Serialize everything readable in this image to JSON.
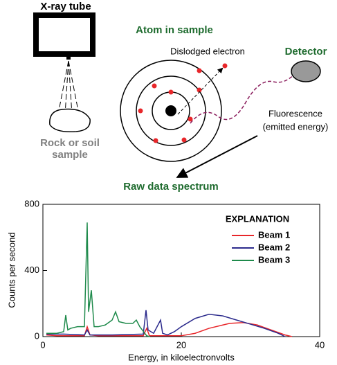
{
  "diagram": {
    "tube_label": "X-ray tube",
    "atom_label": "Atom in sample",
    "electron_label": "Dislodged electron",
    "detector_label": "Detector",
    "fluorescence_label": [
      "Fluorescence",
      "(emitted energy)"
    ],
    "sample_label": [
      "Rock or soil",
      "sample"
    ]
  },
  "chart_data": {
    "type": "line",
    "title": "Raw data spectrum",
    "x_label": "Energy, in kiloelectronvolts",
    "y_label": "Counts per second",
    "xlim": [
      0,
      40
    ],
    "ylim": [
      0,
      800
    ],
    "xticks": [
      0,
      20,
      40
    ],
    "yticks": [
      0,
      400,
      800
    ],
    "legend_title": "EXPLANATION",
    "legend": "upper right",
    "series": [
      {
        "name": "Beam 1",
        "color": "#e8262a",
        "x": [
          0.5,
          2,
          4,
          6,
          6.4,
          6.8,
          8,
          12,
          14.5,
          15,
          15.4,
          17,
          20,
          22,
          24,
          26,
          27,
          29,
          31,
          33,
          35,
          36
        ],
        "values": [
          10,
          5,
          5,
          5,
          60,
          10,
          5,
          5,
          5,
          50,
          5,
          5,
          5,
          20,
          50,
          70,
          80,
          85,
          70,
          40,
          10,
          0
        ]
      },
      {
        "name": "Beam 2",
        "color": "#2b2a8c",
        "x": [
          0.5,
          3,
          6,
          6.4,
          6.8,
          10,
          14.5,
          14.9,
          15.2,
          16,
          17,
          17.3,
          18,
          19,
          20,
          22,
          24,
          26,
          28,
          30,
          32,
          34,
          35
        ],
        "values": [
          15,
          15,
          10,
          40,
          10,
          10,
          15,
          160,
          40,
          20,
          100,
          20,
          10,
          30,
          60,
          110,
          135,
          125,
          100,
          75,
          50,
          20,
          0
        ]
      },
      {
        "name": "Beam 3",
        "color": "#1e8a4b",
        "x": [
          0.5,
          2,
          3,
          3.3,
          3.6,
          4,
          5,
          6,
          6.4,
          6.6,
          7,
          7.4,
          8,
          9,
          10,
          10.5,
          11,
          12,
          13,
          13.5,
          14,
          15,
          15.5
        ],
        "values": [
          20,
          20,
          30,
          130,
          40,
          50,
          60,
          60,
          690,
          150,
          280,
          60,
          60,
          70,
          100,
          150,
          90,
          80,
          80,
          100,
          60,
          5,
          0
        ]
      }
    ]
  }
}
